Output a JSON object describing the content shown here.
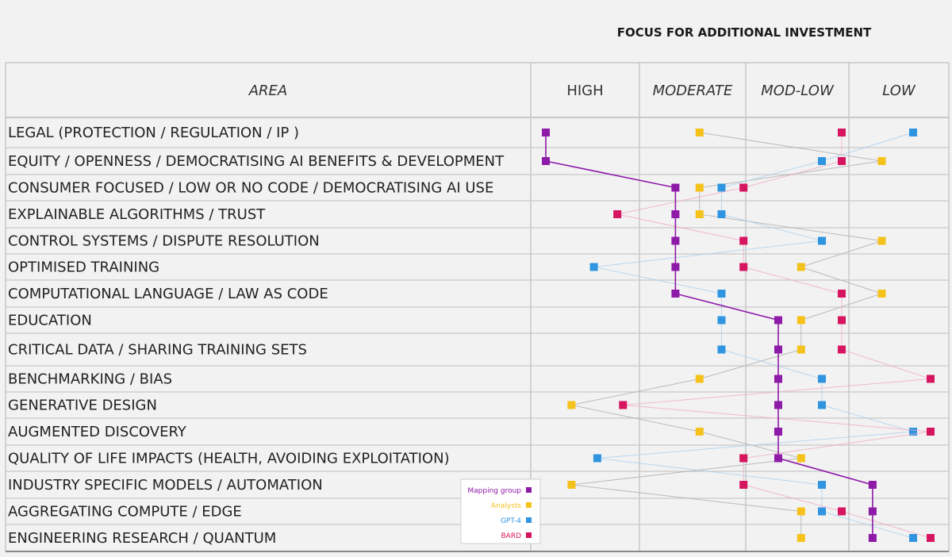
{
  "chart_data": {
    "type": "table",
    "title": "FOCUS FOR ADDITIONAL INVESTMENT",
    "area_header": "AREA",
    "columns": [
      {
        "label": "HIGH",
        "italic": false
      },
      {
        "label": "MODERATE",
        "italic": true
      },
      {
        "label": "MOD-LOW",
        "italic": true
      },
      {
        "label": "LOW",
        "italic": true
      }
    ],
    "categories": [
      "LEGAL (PROTECTION / REGULATION / IP )",
      "EQUITY / OPENNESS / DEMOCRATISING AI BENEFITS & DEVELOPMENT",
      "CONSUMER FOCUSED  / LOW OR NO CODE / DEMOCRATISING AI USE",
      "EXPLAINABLE ALGORITHMS / TRUST",
      "CONTROL SYSTEMS / DISPUTE RESOLUTION",
      "OPTIMISED TRAINING",
      "COMPUTATIONAL LANGUAGE / LAW AS CODE",
      "EDUCATION",
      "CRITICAL DATA / SHARING TRAINING SETS",
      "BENCHMARKING / BIAS",
      "GENERATIVE DESIGN",
      "AUGMENTED DISCOVERY",
      "QUALITY OF LIFE IMPACTS  (HEALTH, AVOIDING EXPLOITATION)",
      "INDUSTRY SPECIFIC MODELS / AUTOMATION",
      "AGGREGATING COMPUTE / EDGE",
      "ENGINEERING RESEARCH / QUANTUM"
    ],
    "value_scale": "0 = HIGH … 1 = MODERATE … 2 = MOD-LOW … 3 = LOW (estimated positions)",
    "series": [
      {
        "name": "Mapping group",
        "color": "#8e1aa8",
        "values": [
          0.0,
          0.0,
          1.17,
          1.17,
          1.17,
          1.17,
          1.17,
          2.16,
          2.16,
          2.16,
          2.16,
          2.16,
          2.16,
          3.12,
          3.12,
          3.12
        ]
      },
      {
        "name": "Analysts",
        "color": "#f5c21b",
        "values": [
          1.4,
          3.22,
          1.4,
          1.4,
          3.22,
          2.39,
          3.22,
          2.39,
          2.39,
          1.4,
          0.23,
          1.4,
          2.39,
          0.23,
          2.39,
          2.39
        ]
      },
      {
        "name": "GPT-4",
        "color": "#2f95e0",
        "values": [
          3.56,
          2.6,
          1.61,
          1.61,
          2.6,
          0.43,
          1.61,
          1.61,
          1.61,
          2.6,
          2.6,
          3.56,
          0.46,
          2.6,
          2.6,
          3.56
        ]
      },
      {
        "name": "BARD",
        "color": "#d6145f",
        "values": [
          2.8,
          2.8,
          1.82,
          0.64,
          1.82,
          1.82,
          2.8,
          2.8,
          2.8,
          3.75,
          0.69,
          3.75,
          1.82,
          1.82,
          2.8,
          3.75
        ]
      }
    ],
    "legend_position": "bottom-center"
  }
}
